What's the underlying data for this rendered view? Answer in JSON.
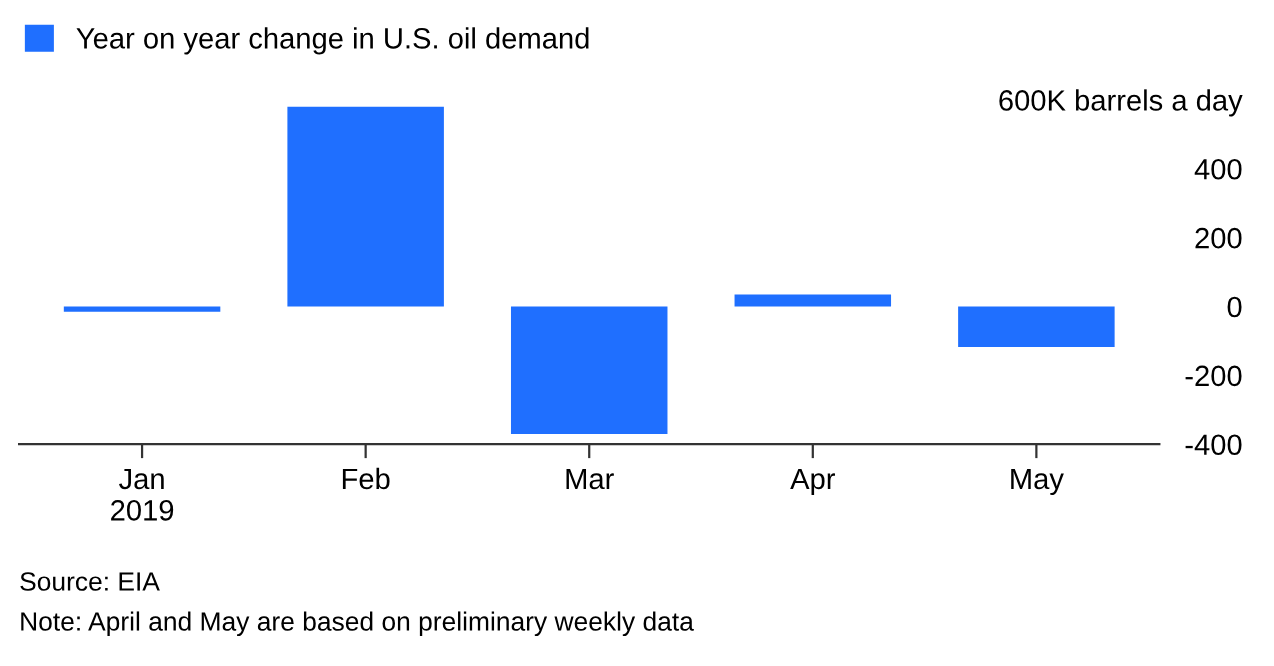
{
  "chart_data": {
    "type": "bar",
    "categories": [
      "Jan\n2019",
      "Feb",
      "Mar",
      "Apr",
      "May"
    ],
    "series": [
      {
        "name": "Year on year change in U.S. oil demand",
        "color": "#1f6fff",
        "values": [
          -15,
          580,
          -370,
          35,
          -118
        ]
      }
    ],
    "ylim": [
      -400,
      600
    ],
    "yticks": [
      {
        "value": 600,
        "label": "600K barrels a day"
      },
      400,
      200,
      0,
      -200,
      -400
    ],
    "grid": false,
    "legend": "top left",
    "annotations": [
      "Source: EIA",
      "Note: April and May are based on preliminary weekly data"
    ]
  }
}
